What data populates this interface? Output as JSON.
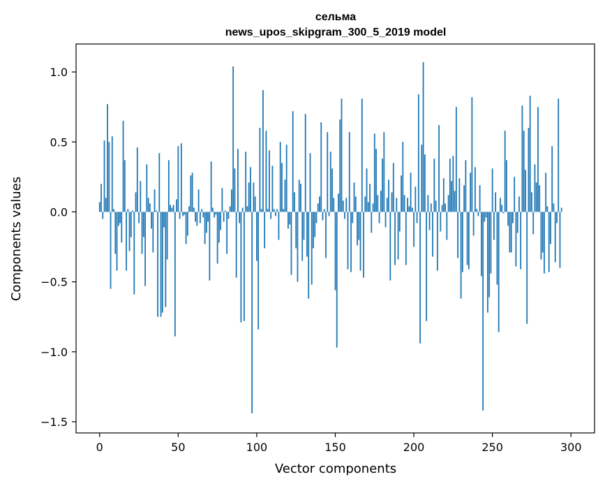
{
  "chart_data": {
    "type": "bar",
    "title": "сельма",
    "subtitle": "news_upos_skipgram_300_5_2019 model",
    "xlabel": "Vector components",
    "ylabel": "Components values",
    "xlim": [
      -15,
      315
    ],
    "ylim": [
      -1.58,
      1.2
    ],
    "xticks": [
      0,
      50,
      100,
      150,
      200,
      250,
      300
    ],
    "xtick_labels": [
      "0",
      "50",
      "100",
      "150",
      "200",
      "250",
      "300"
    ],
    "yticks": [
      -1.5,
      -1.0,
      -0.5,
      0.0,
      0.5,
      1.0
    ],
    "ytick_labels": [
      "−1.5",
      "−1.0",
      "−0.5",
      "0.0",
      "0.5",
      "1.0"
    ],
    "bar_color": "#1f77b4",
    "values": [
      0.07,
      0.2,
      -0.05,
      0.51,
      0.1,
      0.77,
      0.5,
      -0.55,
      0.54,
      0.02,
      -0.3,
      -0.42,
      -0.1,
      -0.08,
      -0.22,
      0.65,
      0.37,
      -0.42,
      0.02,
      -0.28,
      -0.18,
      0.01,
      -0.59,
      0.14,
      0.46,
      -0.08,
      0.22,
      -0.3,
      -0.18,
      -0.53,
      0.34,
      0.1,
      0.06,
      -0.12,
      -0.29,
      0.16,
      0.01,
      -0.75,
      0.42,
      -0.75,
      -0.72,
      -0.11,
      -0.68,
      -0.34,
      0.37,
      0.05,
      0.03,
      0.05,
      -0.89,
      0.09,
      0.47,
      -0.05,
      0.49,
      -0.03,
      -0.02,
      -0.23,
      -0.17,
      0.04,
      0.26,
      0.28,
      0.03,
      -0.07,
      -0.1,
      0.16,
      -0.08,
      0.02,
      -0.04,
      -0.23,
      -0.15,
      -0.07,
      -0.49,
      0.36,
      0.03,
      -0.04,
      -0.02,
      -0.37,
      -0.22,
      -0.13,
      0.17,
      -0.07,
      0.01,
      -0.3,
      -0.05,
      0.04,
      0.16,
      1.04,
      0.31,
      -0.47,
      0.45,
      -0.08,
      -0.79,
      0.03,
      -0.78,
      0.43,
      0.04,
      0.21,
      0.32,
      -1.44,
      0.21,
      0.11,
      -0.35,
      -0.84,
      0.6,
      0.02,
      0.87,
      -0.26,
      0.58,
      0.02,
      0.44,
      -0.05,
      0.33,
      0.02,
      -0.03,
      0.02,
      -0.2,
      0.5,
      0.35,
      0.02,
      0.23,
      0.48,
      -0.12,
      -0.09,
      -0.45,
      0.72,
      0.14,
      -0.26,
      -0.5,
      0.23,
      0.2,
      -0.35,
      -0.2,
      0.7,
      -0.32,
      -0.62,
      0.42,
      -0.52,
      -0.26,
      -0.18,
      -0.08,
      0.06,
      0.11,
      0.64,
      -0.06,
      0.02,
      -0.33,
      0.57,
      -0.03,
      0.43,
      0.31,
      0.1,
      -0.56,
      -0.97,
      0.13,
      0.66,
      0.81,
      0.08,
      -0.05,
      0.1,
      -0.41,
      0.57,
      -0.43,
      -0.08,
      0.21,
      0.11,
      -0.24,
      -0.2,
      -0.42,
      0.81,
      -0.47,
      0.11,
      0.31,
      0.07,
      0.2,
      -0.15,
      0.06,
      0.56,
      0.45,
      0.12,
      -0.08,
      0.15,
      0.38,
      0.57,
      -0.11,
      0.1,
      0.23,
      -0.49,
      0.14,
      0.35,
      -0.38,
      0.1,
      -0.34,
      -0.14,
      0.26,
      0.5,
      0.12,
      -0.38,
      0.1,
      0.04,
      0.28,
      0.03,
      -0.25,
      0.18,
      -0.08,
      0.84,
      -0.94,
      0.48,
      1.07,
      0.41,
      -0.78,
      0.12,
      -0.13,
      0.06,
      -0.32,
      0.38,
      0.08,
      -0.42,
      0.62,
      -0.14,
      0.05,
      0.24,
      0.06,
      -0.2,
      0.12,
      0.38,
      0.22,
      0.4,
      0.15,
      0.75,
      -0.33,
      0.24,
      -0.62,
      -0.43,
      0.19,
      0.37,
      -0.38,
      -0.41,
      0.28,
      0.82,
      -0.17,
      0.32,
      0.02,
      -0.03,
      0.19,
      -0.46,
      -1.42,
      -0.07,
      -0.04,
      -0.72,
      -0.61,
      -0.44,
      0.31,
      -0.2,
      0.14,
      -0.52,
      -0.86,
      0.1,
      0.05,
      -0.01,
      0.58,
      0.37,
      -0.1,
      -0.29,
      -0.29,
      -0.08,
      0.25,
      -0.39,
      -0.15,
      0.11,
      -0.41,
      0.76,
      0.58,
      0.3,
      -0.8,
      0.6,
      0.83,
      0.14,
      -0.16,
      0.34,
      0.21,
      0.75,
      0.19,
      -0.34,
      -0.29,
      -0.44,
      0.28,
      0.04,
      -0.43,
      -0.23,
      0.47,
      0.06,
      -0.36,
      -0.08,
      0.81,
      -0.4,
      0.03
    ]
  }
}
